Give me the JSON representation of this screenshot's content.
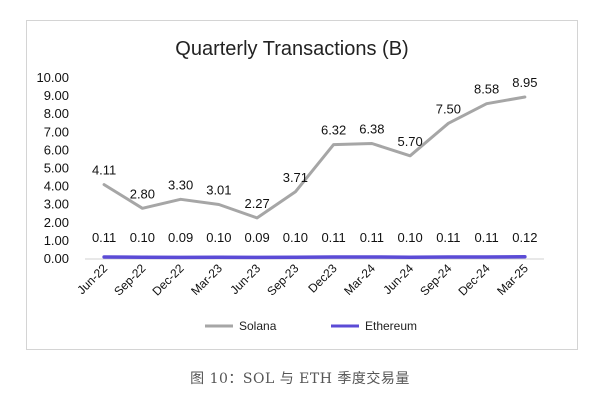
{
  "caption": "图 10：SOL 与 ETH 季度交易量",
  "chart_data": {
    "type": "line",
    "title": "Quarterly Transactions (B)",
    "xlabel": "",
    "ylabel": "",
    "categories": [
      "Jun-22",
      "Sep-22",
      "Dec-22",
      "Mar-23",
      "Jun-23",
      "Sep-23",
      "Dec23",
      "Mar-24",
      "Jun-24",
      "Sep-24",
      "Dec-24",
      "Mar-25"
    ],
    "ylim": [
      0,
      10
    ],
    "yticks": [
      "0.00",
      "1.00",
      "2.00",
      "3.00",
      "4.00",
      "5.00",
      "6.00",
      "7.00",
      "8.00",
      "9.00",
      "10.00"
    ],
    "grid": false,
    "legend_position": "bottom",
    "series": [
      {
        "name": "Solana",
        "color": "#a6a6a6",
        "values": [
          4.11,
          2.8,
          3.3,
          3.01,
          2.27,
          3.71,
          6.32,
          6.38,
          5.7,
          7.5,
          8.58,
          8.95
        ],
        "labels": [
          "4.11",
          "2.80",
          "3.30",
          "3.01",
          "2.27",
          "3.71",
          "6.32",
          "6.38",
          "5.70",
          "7.50",
          "8.58",
          "8.95"
        ]
      },
      {
        "name": "Ethereum",
        "color": "#5b4bd6",
        "values": [
          0.11,
          0.1,
          0.09,
          0.1,
          0.09,
          0.1,
          0.11,
          0.11,
          0.1,
          0.11,
          0.11,
          0.12
        ],
        "labels": [
          "0.11",
          "0.10",
          "0.09",
          "0.10",
          "0.09",
          "0.10",
          "0.11",
          "0.11",
          "0.10",
          "0.11",
          "0.11",
          "0.12"
        ]
      }
    ]
  }
}
